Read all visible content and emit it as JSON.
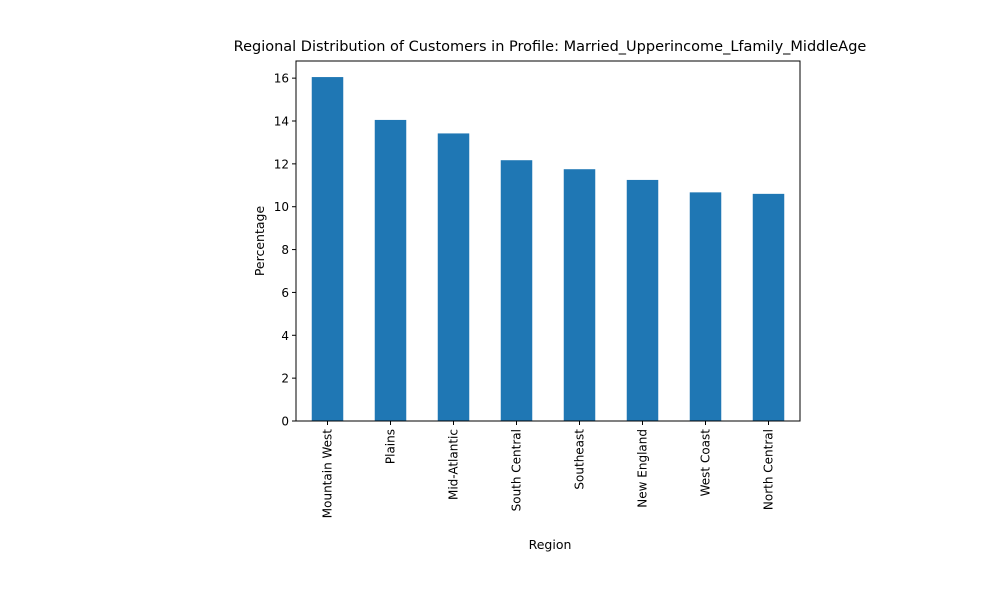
{
  "chart_data": {
    "type": "bar",
    "title": "Regional Distribution of Customers in Profile: Married_Upperincome_Lfamily_MiddleAge",
    "xlabel": "Region",
    "ylabel": "Percentage",
    "categories": [
      "Mountain West",
      "Plains",
      "Mid-Atlantic",
      "South Central",
      "Southeast",
      "New England",
      "West Coast",
      "North Central"
    ],
    "values": [
      16.05,
      14.05,
      13.42,
      12.17,
      11.75,
      11.25,
      10.67,
      10.6
    ],
    "ylim": [
      0,
      16.8
    ],
    "yticks": [
      0,
      2,
      4,
      6,
      8,
      10,
      12,
      14,
      16
    ],
    "grid": false,
    "legend": "none",
    "bar_color": "#1f77b4"
  }
}
